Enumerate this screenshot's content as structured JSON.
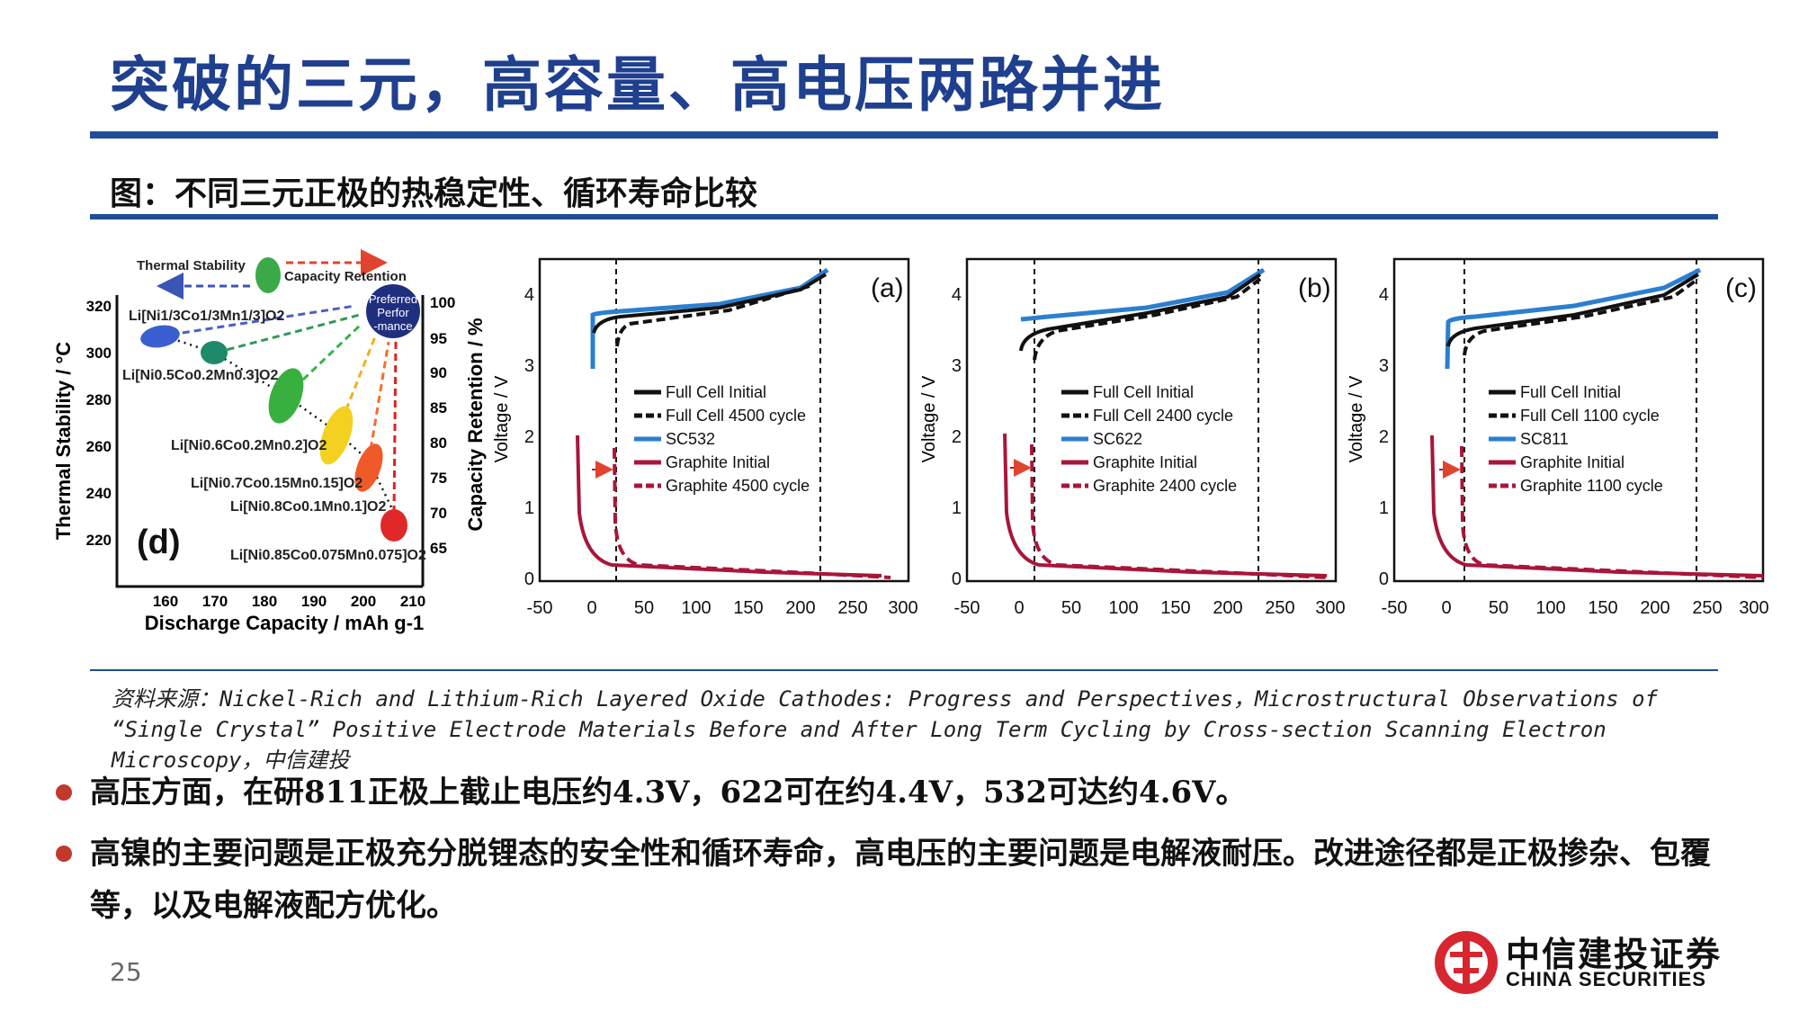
{
  "title": "突破的三元，高容量、高电压两路并进",
  "subtitle": "图：不同三元正极的热稳定性、循环寿命比较",
  "panel_d": {
    "label": "(d)",
    "ylabel_left": "Thermal Stability / °C",
    "ylabel_right": "Capacity Retention / %",
    "xlabel": "Discharge Capacity / mAh g-1",
    "x_ticks": [
      "160",
      "170",
      "180",
      "190",
      "200",
      "210"
    ],
    "y_left_ticks": [
      "320",
      "300",
      "280",
      "260",
      "240",
      "220"
    ],
    "y_right_ticks": [
      "100",
      "95",
      "90",
      "85",
      "80",
      "75",
      "70",
      "65"
    ],
    "arrow_left_label": "Thermal Stability",
    "arrow_right_label": "Capacity Retention",
    "preferred": [
      "Preferred",
      "Perfor",
      "-mance"
    ],
    "materials": [
      "Li[Ni1/3Co1/3Mn1/3]O2",
      "Li[Ni0.5Co0.2Mn0.3]O2",
      "Li[Ni0.6Co0.2Mn0.2]O2",
      "Li[Ni0.7Co0.15Mn0.15]O2",
      "Li[Ni0.8Co0.1Mn0.1]O2",
      "Li[Ni0.85Co0.075Mn0.075]O2"
    ]
  },
  "voltage_panels": [
    {
      "label": "(a)",
      "ylabel": "Voltage / V",
      "x_ticks": [
        "-50",
        "0",
        "50",
        "100",
        "150",
        "200",
        "250",
        "300"
      ],
      "y_ticks": [
        "0",
        "1",
        "2",
        "3",
        "4"
      ],
      "legend": [
        "Full Cell Initial",
        "Full Cell 4500 cycle",
        "SC532",
        "Graphite Initial",
        "Graphite 4500 cycle"
      ]
    },
    {
      "label": "(b)",
      "ylabel": "Voltage / V",
      "x_ticks": [
        "-50",
        "0",
        "50",
        "100",
        "150",
        "200",
        "250",
        "300"
      ],
      "y_ticks": [
        "0",
        "1",
        "2",
        "3",
        "4"
      ],
      "legend": [
        "Full Cell Initial",
        "Full Cell 2400 cycle",
        "SC622",
        "Graphite Initial",
        "Graphite 2400 cycle"
      ]
    },
    {
      "label": "(c)",
      "ylabel": "Voltage / V",
      "x_ticks": [
        "-50",
        "0",
        "50",
        "100",
        "150",
        "200",
        "250",
        "300"
      ],
      "y_ticks": [
        "0",
        "1",
        "2",
        "3",
        "4"
      ],
      "legend": [
        "Full Cell Initial",
        "Full Cell 1100 cycle",
        "SC811",
        "Graphite Initial",
        "Graphite 1100 cycle"
      ]
    }
  ],
  "source": "资料来源：Nickel-Rich and Lithium-Rich Layered Oxide Cathodes: Progress and Perspectives，Microstructural Observations of “Single Crystal” Positive Electrode Materials Before and After Long Term Cycling by Cross-section Scanning Electron Microscopy，中信建投",
  "bullets": [
    "高压方面，在研811正极上截止电压约4.3V，622可在约4.4V，532可达约4.6V。",
    "高镍的主要问题是正极充分脱锂态的安全性和循环寿命，高电压的主要问题是电解液耐压。改进途径都是正极掺杂、包覆等，以及电解液配方优化。"
  ],
  "page_number": "25",
  "logo": {
    "cn": "中信建投证券",
    "en": "CHINA SECURITIES"
  },
  "colors": {
    "accent_blue": "#1f4e96",
    "title_blue": "#1f3f8f",
    "bullet_red": "#c0392b",
    "curve_blue": "#2a7fd0",
    "curve_red": "#a8163a"
  }
}
